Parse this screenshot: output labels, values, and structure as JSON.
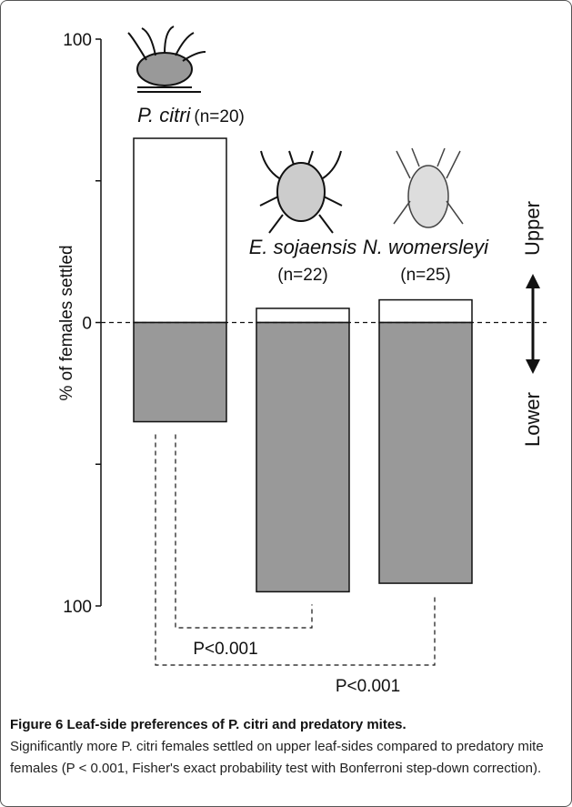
{
  "chart_data": {
    "type": "diverging-bar",
    "ylabel": "% of females settled",
    "categories": [
      "P. citri",
      "E. sojaensis",
      "N. womersleyi"
    ],
    "sample_labels": [
      "(n=20)",
      "(n=22)",
      "(n=25)"
    ],
    "series": [
      {
        "name": "Upper",
        "color": "#ffffff",
        "values": [
          65,
          5,
          8
        ]
      },
      {
        "name": "Lower",
        "color": "#999999",
        "values": [
          -35,
          -95,
          -92
        ]
      }
    ],
    "ylim": [
      -100,
      100
    ],
    "yticks": [
      100,
      0,
      {
        "value": -100,
        "label": "100"
      }
    ],
    "yminor_ticks": [
      50,
      -50
    ],
    "comparisons": [
      {
        "from": 0,
        "to": 1,
        "label": "P<0.001"
      },
      {
        "from": 0,
        "to": 2,
        "label": "P<0.001"
      }
    ]
  },
  "caption": {
    "title": "Figure 6 Leaf-side preferences of P. citri and predatory mites.",
    "text": "Significantly more P. citri females settled on upper leaf-sides compared to predatory mite females (P < 0.001, Fisher's exact probability test with Bonferroni step-down correction)."
  }
}
